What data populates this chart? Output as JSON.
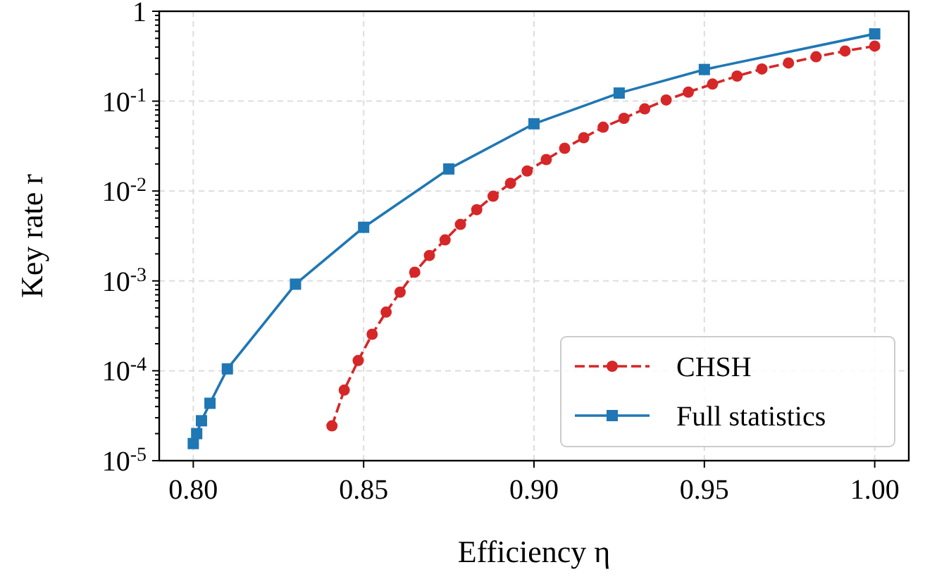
{
  "chart_data": {
    "type": "line",
    "xlabel": "Efficiency η",
    "ylabel": "Key rate r",
    "log": "y",
    "grid": true,
    "legend": "bottom right",
    "xlim": [
      0.79,
      1.01
    ],
    "xticks": [
      {
        "value": 0.8,
        "label": "0.80"
      },
      0.85,
      {
        "value": 0.9,
        "label": "0.90"
      },
      0.95,
      {
        "value": 1.0,
        "label": "1.00"
      }
    ],
    "ylim": [
      1e-05,
      1
    ],
    "yticks": [
      {
        "value": 1e-05,
        "label": "10$^{-5}$"
      },
      {
        "value": 2e-05,
        "label": null
      },
      {
        "value": 3e-05,
        "label": null
      },
      {
        "value": 4e-05,
        "label": null
      },
      {
        "value": 5e-05,
        "label": null
      },
      {
        "value": 6e-05,
        "label": null
      },
      {
        "value": 7e-05,
        "label": null
      },
      {
        "value": 8e-05,
        "label": null
      },
      {
        "value": 9e-05,
        "label": null
      },
      {
        "value": 0.0001,
        "label": "10$^{-4}$"
      },
      {
        "value": 0.0002,
        "label": null
      },
      {
        "value": 0.0003,
        "label": null
      },
      {
        "value": 0.0004,
        "label": null
      },
      {
        "value": 0.0005,
        "label": null
      },
      {
        "value": 0.0006,
        "label": null
      },
      {
        "value": 0.0007,
        "label": null
      },
      {
        "value": 0.0008,
        "label": null
      },
      {
        "value": 0.0009,
        "label": null
      },
      {
        "value": 0.001,
        "label": "10$^{-3}$"
      },
      {
        "value": 0.002,
        "label": null
      },
      {
        "value": 0.003,
        "label": null
      },
      {
        "value": 0.004,
        "label": null
      },
      {
        "value": 0.005,
        "label": null
      },
      {
        "value": 0.006,
        "label": null
      },
      {
        "value": 0.007,
        "label": null
      },
      {
        "value": 0.008,
        "label": null
      },
      {
        "value": 0.009,
        "label": null
      },
      {
        "value": 0.01,
        "label": "10$^{-2}$"
      },
      {
        "value": 0.02,
        "label": null
      },
      {
        "value": 0.03,
        "label": null
      },
      {
        "value": 0.04,
        "label": null
      },
      {
        "value": 0.05,
        "label": null
      },
      {
        "value": 0.06,
        "label": null
      },
      {
        "value": 0.07,
        "label": null
      },
      {
        "value": 0.08,
        "label": null
      },
      {
        "value": 0.09,
        "label": null
      },
      {
        "value": 0.1,
        "label": "10$^{-1}$"
      },
      {
        "value": 0.2,
        "label": null
      },
      {
        "value": 0.3,
        "label": null
      },
      {
        "value": 0.4,
        "label": null
      },
      {
        "value": 0.5,
        "label": null
      },
      {
        "value": 0.6,
        "label": null
      },
      {
        "value": 0.7,
        "label": null
      },
      {
        "value": 0.8,
        "label": null
      },
      {
        "value": 0.9,
        "label": null
      },
      1
    ],
    "series": [
      {
        "name": "CHSH",
        "color": "#d62728",
        "marker": "circle",
        "line_style": "dashed",
        "x": [
          0.8407,
          0.8443,
          0.8484,
          0.8525,
          0.8566,
          0.8607,
          0.865,
          0.8693,
          0.8739,
          0.8784,
          0.8832,
          0.888,
          0.8931,
          0.898,
          0.9036,
          0.909,
          0.9146,
          0.9203,
          0.9264,
          0.9325,
          0.9388,
          0.9453,
          0.9524,
          0.9596,
          0.9669,
          0.9747,
          0.9828,
          0.9913,
          1.0
        ],
        "values": [
          2.44e-05,
          6.1e-05,
          0.00013,
          0.000255,
          0.00045,
          0.00075,
          0.00125,
          0.00192,
          0.00286,
          0.00425,
          0.0062,
          0.00875,
          0.0122,
          0.0167,
          0.0224,
          0.0299,
          0.0392,
          0.0513,
          0.0644,
          0.082,
          0.103,
          0.126,
          0.155,
          0.19,
          0.228,
          0.266,
          0.312,
          0.361,
          0.41
        ]
      },
      {
        "name": "Full statistics",
        "color": "#1f77b4",
        "marker": "square",
        "line_style": "solid",
        "x": [
          0.8,
          0.801,
          0.8024,
          0.8049,
          0.81,
          0.83,
          0.85,
          0.875,
          0.9,
          0.925,
          0.95,
          1.0
        ],
        "values": [
          1.55e-05,
          2e-05,
          2.78e-05,
          4.35e-05,
          0.000105,
          0.00092,
          0.00395,
          0.0176,
          0.056,
          0.123,
          0.225,
          0.56
        ]
      }
    ]
  }
}
